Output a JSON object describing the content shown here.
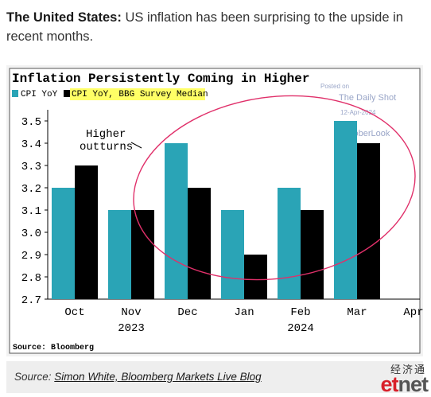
{
  "caption": {
    "bold": "The United States:",
    "text": "US inflation has been surprising to the upside in recent months."
  },
  "chart_data": {
    "type": "bar",
    "title": "Inflation Persistently Coming in Higher",
    "categories": [
      "Oct",
      "Nov",
      "Dec",
      "Jan",
      "Feb",
      "Mar"
    ],
    "x_tick_labels": [
      "Oct",
      "Nov",
      "Dec",
      "Jan",
      "Feb",
      "Mar",
      "Apr"
    ],
    "year_labels": [
      "2023",
      "2024"
    ],
    "series": [
      {
        "name": "CPI YoY",
        "values": [
          3.2,
          3.1,
          3.4,
          3.1,
          3.2,
          3.5
        ],
        "color": "#2aa4b6"
      },
      {
        "name": "CPI YoY, BBG Survey Median",
        "values": [
          3.3,
          3.1,
          3.2,
          2.9,
          3.1,
          3.4
        ],
        "color": "#000000"
      }
    ],
    "ylim": [
      2.7,
      3.5
    ],
    "yticks": [
      "3.5",
      "3.4",
      "3.3",
      "3.2",
      "3.1",
      "3.0",
      "2.9",
      "2.8",
      "2.7"
    ],
    "annotation": "Higher outturns",
    "annotation_lines": [
      "Higher",
      "outturns"
    ],
    "watermark": [
      "Posted on",
      "The Daily Shot",
      "12-Apr-2024",
      "@SoberLook"
    ],
    "source": "Source: Bloomberg",
    "colors": {
      "cpi": "#2aa4b6",
      "median": "#000000",
      "legend_highlight": "#ffff66",
      "circle": "#e0306a"
    }
  },
  "footer": {
    "source_prefix": "Source:",
    "source_link": "Simon White, Bloomberg Markets Live Blog",
    "logo_cn": "经济通",
    "logo_et": "et",
    "logo_net": "net"
  }
}
